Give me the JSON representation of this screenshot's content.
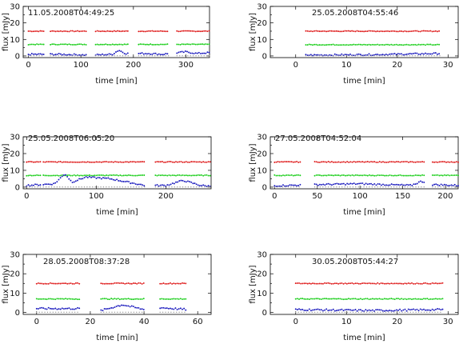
{
  "chart_data": [
    {
      "type": "scatter",
      "title": "11.05.2008T04:49:25",
      "xlabel": "time [min]",
      "ylabel": "flux [mJy]",
      "xlim": [
        -10,
        345
      ],
      "ylim": [
        -1,
        30
      ],
      "xticks": [
        0,
        100,
        200,
        300
      ],
      "yticks": [
        0,
        10,
        20,
        30
      ],
      "segments": [
        [
          0,
          30
        ],
        [
          42,
          110
        ],
        [
          128,
          190
        ],
        [
          210,
          268
        ],
        [
          283,
          345
        ]
      ],
      "series": [
        {
          "color": "#dd1111",
          "levels": [
            [
              0,
              15
            ],
            [
              345,
              15
            ]
          ]
        },
        {
          "color": "#11cc11",
          "levels": [
            [
              0,
              7
            ],
            [
              345,
              7
            ]
          ]
        },
        {
          "color": "#1111bb",
          "levels": [
            [
              0,
              1
            ],
            [
              60,
              1
            ],
            [
              120,
              0.5
            ],
            [
              160,
              1
            ],
            [
              172,
              3.5
            ],
            [
              185,
              1.5
            ],
            [
              230,
              1.5
            ],
            [
              255,
              1
            ],
            [
              300,
              2.5
            ],
            [
              320,
              1.5
            ],
            [
              345,
              2
            ]
          ]
        }
      ]
    },
    {
      "type": "scatter",
      "title": "25.05.2008T04:55:46",
      "xlabel": "time [min]",
      "ylabel": "flux [mJy]",
      "xlim": [
        -5,
        32
      ],
      "ylim": [
        -1,
        30
      ],
      "xticks": [
        0,
        10,
        20,
        30
      ],
      "yticks": [
        0,
        10,
        20,
        30
      ],
      "segments": [
        [
          2,
          28.5
        ]
      ],
      "series": [
        {
          "color": "#dd1111",
          "levels": [
            [
              2,
              15
            ],
            [
              28.5,
              15
            ]
          ]
        },
        {
          "color": "#11cc11",
          "levels": [
            [
              2,
              6.8
            ],
            [
              28.5,
              6.8
            ]
          ]
        },
        {
          "color": "#1111bb",
          "levels": [
            [
              2,
              0.5
            ],
            [
              15,
              0.8
            ],
            [
              28.5,
              1.5
            ]
          ]
        }
      ]
    },
    {
      "type": "scatter",
      "title": "25.05.2008T06:05:20",
      "xlabel": "time [min]",
      "ylabel": "flux [mJy]",
      "xlim": [
        -5,
        265
      ],
      "ylim": [
        -1,
        30
      ],
      "xticks": [
        0,
        100,
        200
      ],
      "yticks": [
        0,
        10,
        20,
        30
      ],
      "segments": [
        [
          0,
          20
        ],
        [
          24,
          170
        ],
        [
          185,
          265
        ]
      ],
      "series": [
        {
          "color": "#dd1111",
          "levels": [
            [
              0,
              15
            ],
            [
              265,
              15
            ]
          ]
        },
        {
          "color": "#11cc11",
          "levels": [
            [
              0,
              7
            ],
            [
              265,
              7
            ]
          ]
        },
        {
          "color": "#1111bb",
          "levels": [
            [
              0,
              1
            ],
            [
              40,
              2
            ],
            [
              55,
              8
            ],
            [
              65,
              3
            ],
            [
              85,
              6
            ],
            [
              120,
              5
            ],
            [
              170,
              1
            ],
            [
              200,
              1
            ],
            [
              225,
              4
            ],
            [
              250,
              1
            ],
            [
              265,
              0.5
            ]
          ]
        }
      ]
    },
    {
      "type": "scatter",
      "title": "27.05.2008T04:52:04",
      "xlabel": "time [min]",
      "ylabel": "flux [mJy]",
      "xlim": [
        -5,
        215
      ],
      "ylim": [
        -1,
        30
      ],
      "xticks": [
        0,
        50,
        100,
        150,
        200
      ],
      "yticks": [
        0,
        10,
        20,
        30
      ],
      "segments": [
        [
          0,
          30
        ],
        [
          47,
          175
        ],
        [
          185,
          215
        ]
      ],
      "series": [
        {
          "color": "#dd1111",
          "levels": [
            [
              0,
              15
            ],
            [
              215,
              15
            ]
          ]
        },
        {
          "color": "#11cc11",
          "levels": [
            [
              0,
              7
            ],
            [
              215,
              7
            ]
          ]
        },
        {
          "color": "#1111bb",
          "levels": [
            [
              0,
              0.8
            ],
            [
              50,
              1.5
            ],
            [
              100,
              2
            ],
            [
              160,
              1
            ],
            [
              172,
              3.5
            ],
            [
              185,
              1.5
            ],
            [
              215,
              1
            ]
          ]
        }
      ]
    },
    {
      "type": "scatter",
      "title": "28.05.2008T08:37:28",
      "xlabel": "time [min]",
      "ylabel": "flux [mJy]",
      "xlim": [
        -5,
        65
      ],
      "ylim": [
        -1,
        30
      ],
      "xticks": [
        0,
        20,
        40,
        60
      ],
      "yticks": [
        0,
        10,
        20,
        30
      ],
      "segments": [
        [
          0,
          16
        ],
        [
          24,
          40
        ],
        [
          46,
          56
        ]
      ],
      "series": [
        {
          "color": "#dd1111",
          "levels": [
            [
              0,
              15
            ],
            [
              56,
              15
            ]
          ]
        },
        {
          "color": "#11cc11",
          "levels": [
            [
              0,
              7
            ],
            [
              56,
              7
            ]
          ]
        },
        {
          "color": "#1111bb",
          "levels": [
            [
              0,
              2
            ],
            [
              16,
              2
            ],
            [
              24,
              1
            ],
            [
              32,
              4
            ],
            [
              40,
              1.5
            ],
            [
              46,
              2.5
            ],
            [
              56,
              1.5
            ]
          ]
        }
      ]
    },
    {
      "type": "scatter",
      "title": "30.05.2008T05:44:27",
      "xlabel": "time [min]",
      "ylabel": "flux [mJy]",
      "xlim": [
        -5,
        32
      ],
      "ylim": [
        -1,
        30
      ],
      "xticks": [
        0,
        10,
        20,
        30
      ],
      "yticks": [
        0,
        10,
        20,
        30
      ],
      "segments": [
        [
          0,
          29
        ]
      ],
      "series": [
        {
          "color": "#dd1111",
          "levels": [
            [
              0,
              15
            ],
            [
              29,
              15
            ]
          ]
        },
        {
          "color": "#11cc11",
          "levels": [
            [
              0,
              7
            ],
            [
              29,
              7
            ]
          ]
        },
        {
          "color": "#1111bb",
          "levels": [
            [
              0,
              1.5
            ],
            [
              15,
              1
            ],
            [
              29,
              1.5
            ]
          ]
        }
      ]
    }
  ]
}
